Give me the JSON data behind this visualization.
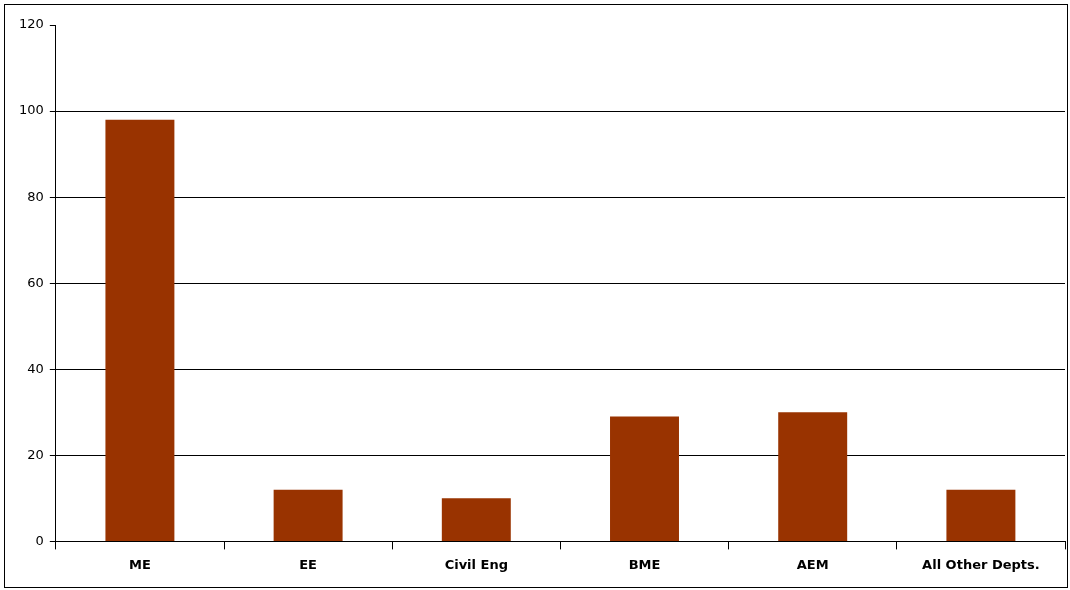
{
  "chart_data": {
    "type": "bar",
    "categories": [
      "ME",
      "EE",
      "Civil Eng",
      "BME",
      "AEM",
      "All Other Depts."
    ],
    "values": [
      98,
      12,
      10,
      29,
      30,
      12
    ],
    "color": "#993300",
    "ylim": [
      0,
      120
    ],
    "yticks": [
      0,
      20,
      40,
      60,
      80,
      100,
      120
    ],
    "grid": "y",
    "legend": false
  }
}
